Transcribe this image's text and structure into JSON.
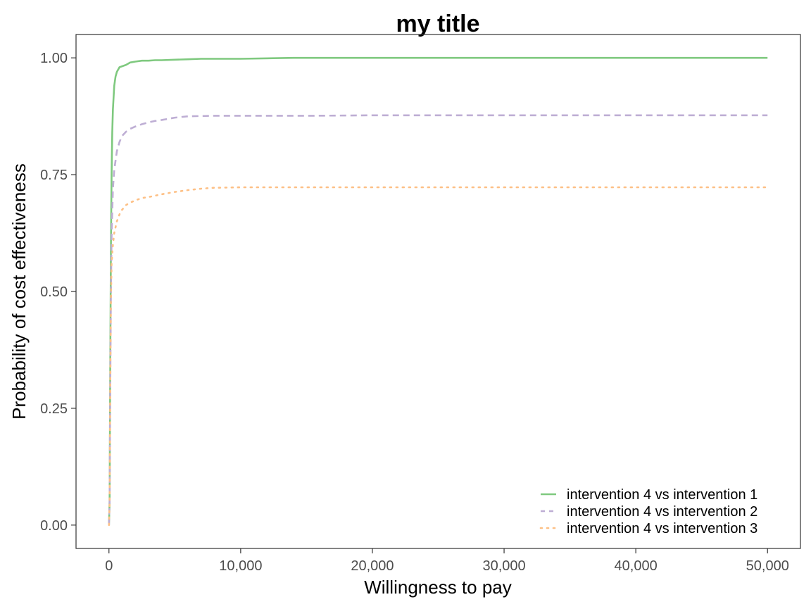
{
  "chart_data": {
    "type": "line",
    "title": "my title",
    "xlabel": "Willingness to pay",
    "ylabel": "Probability of cost effectiveness",
    "xlim": [
      -2500,
      52500
    ],
    "ylim": [
      -0.05,
      1.05
    ],
    "x_ticks": [
      0,
      10000,
      20000,
      30000,
      40000,
      50000
    ],
    "x_tick_labels": [
      "0",
      "10,000",
      "20,000",
      "30,000",
      "40,000",
      "50,000"
    ],
    "y_ticks": [
      0,
      0.25,
      0.5,
      0.75,
      1
    ],
    "y_tick_labels": [
      "0.00",
      "0.25",
      "0.50",
      "0.75",
      "1.00"
    ],
    "grid": false,
    "legend_position": "bottom-right",
    "series": [
      {
        "name": "intervention 4 vs intervention 1",
        "color": "#7fc97f",
        "dash": "solid",
        "x": [
          0,
          50,
          100,
          150,
          200,
          250,
          300,
          400,
          500,
          600,
          800,
          1000,
          1300,
          1600,
          2000,
          2500,
          3000,
          3500,
          4000,
          5000,
          6000,
          7000,
          10000,
          14000,
          20000,
          30000,
          40000,
          50000
        ],
        "y": [
          0,
          0.05,
          0.35,
          0.6,
          0.75,
          0.84,
          0.89,
          0.94,
          0.96,
          0.97,
          0.98,
          0.982,
          0.985,
          0.99,
          0.992,
          0.994,
          0.994,
          0.995,
          0.995,
          0.996,
          0.997,
          0.998,
          0.998,
          1.0,
          1.0,
          1.0,
          1.0,
          1.0
        ]
      },
      {
        "name": "intervention 4 vs intervention 2",
        "color": "#beaed4",
        "dash": "dashed",
        "x": [
          0,
          50,
          100,
          150,
          200,
          300,
          400,
          600,
          800,
          1000,
          1300,
          1600,
          2000,
          2500,
          3000,
          3500,
          4000,
          5000,
          6000,
          8000,
          10000,
          15000,
          20000,
          30000,
          40000,
          50000
        ],
        "y": [
          0,
          0.05,
          0.3,
          0.5,
          0.62,
          0.72,
          0.76,
          0.8,
          0.82,
          0.833,
          0.842,
          0.848,
          0.853,
          0.858,
          0.862,
          0.865,
          0.867,
          0.872,
          0.875,
          0.876,
          0.876,
          0.876,
          0.877,
          0.877,
          0.877,
          0.877
        ]
      },
      {
        "name": "intervention 4 vs intervention 3",
        "color": "#fdc086",
        "dash": "dotted",
        "x": [
          0,
          50,
          100,
          150,
          200,
          300,
          400,
          600,
          800,
          1000,
          1300,
          1600,
          2000,
          2500,
          3000,
          3500,
          4000,
          5000,
          6000,
          7000,
          8000,
          10000,
          20000,
          30000,
          40000,
          50000
        ],
        "y": [
          0,
          0.05,
          0.3,
          0.48,
          0.56,
          0.6,
          0.625,
          0.65,
          0.665,
          0.675,
          0.685,
          0.69,
          0.695,
          0.7,
          0.702,
          0.705,
          0.708,
          0.713,
          0.717,
          0.72,
          0.722,
          0.723,
          0.723,
          0.723,
          0.723,
          0.723
        ]
      }
    ]
  }
}
